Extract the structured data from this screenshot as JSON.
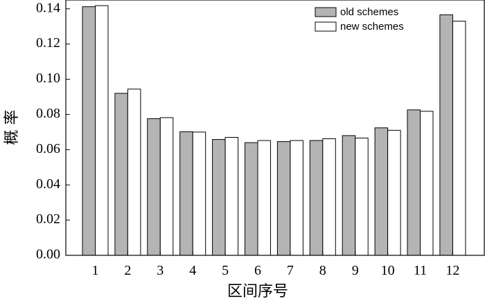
{
  "chart_data": {
    "type": "bar",
    "title": "",
    "xlabel": "区间序号",
    "ylabel": "概 率",
    "categories": [
      "1",
      "2",
      "3",
      "4",
      "5",
      "6",
      "7",
      "8",
      "9",
      "10",
      "11",
      "12"
    ],
    "series": [
      {
        "name": "old schemes",
        "color": "#b4b4b4",
        "values": [
          0.1412,
          0.092,
          0.0776,
          0.0702,
          0.0658,
          0.064,
          0.0646,
          0.0652,
          0.068,
          0.0724,
          0.0826,
          0.1366
        ]
      },
      {
        "name": "new schemes",
        "color": "#ffffff",
        "values": [
          0.1418,
          0.0944,
          0.0782,
          0.07,
          0.067,
          0.0652,
          0.0652,
          0.0662,
          0.0666,
          0.071,
          0.0818,
          0.133
        ]
      }
    ],
    "ylim": [
      0,
      0.145
    ],
    "yticks": [
      "0.00",
      "0.02",
      "0.04",
      "0.06",
      "0.08",
      "0.10",
      "0.12",
      "0.14"
    ],
    "grid": false,
    "legend_position": "top-right"
  }
}
